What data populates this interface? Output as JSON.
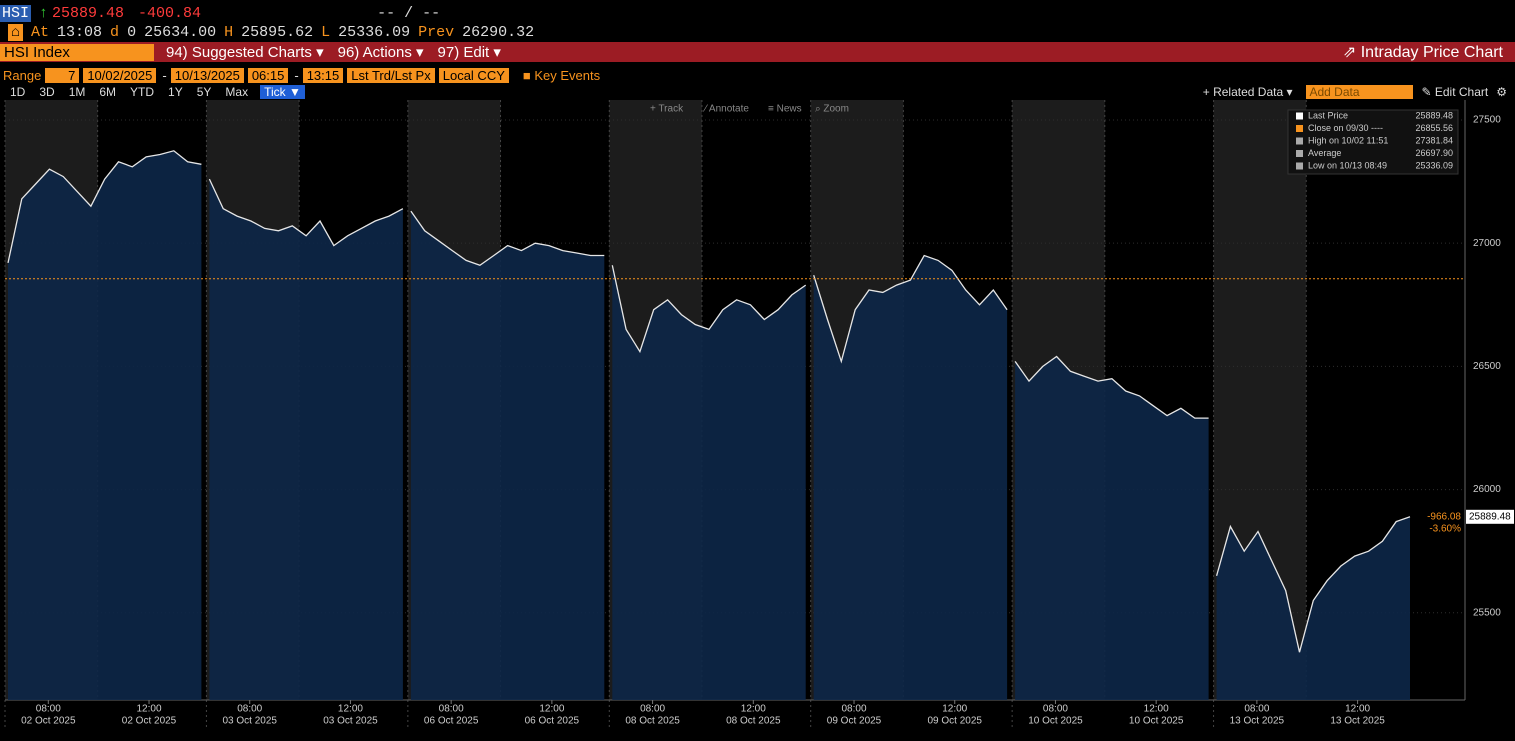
{
  "header": {
    "ticker": "HSI",
    "last": "25889.48",
    "change": "-400.84",
    "bid_ask": "-- / --",
    "at": "At",
    "time": "13:08",
    "d": "d",
    "d_value": "0",
    "open": "25634.00",
    "h": "H",
    "high": "25895.62",
    "l": "L",
    "low": "25336.09",
    "prev": "Prev",
    "prev_value": "26290.32"
  },
  "menu": {
    "security": "HSI Index",
    "items": [
      "94) Suggested Charts ▾",
      "96) Actions ▾",
      "97) Edit ▾"
    ],
    "title": "Intraday Price Chart"
  },
  "range_bar": {
    "label": "Range",
    "days": "7",
    "start": "10/02/2025",
    "dash": "-",
    "end": "10/13/2025",
    "time_start": "06:15",
    "time_end": "13:15",
    "field": "Lst Trd/Lst Px",
    "currency": "Local CCY",
    "events": "Key Events"
  },
  "periods": [
    "1D",
    "3D",
    "1M",
    "6M",
    "YTD",
    "1Y",
    "5Y",
    "Max",
    "Tick ▼"
  ],
  "right_tools": {
    "related": "+ Related Data ▾",
    "add": "Add Data",
    "edit": "✎ Edit Chart"
  },
  "tools": [
    "+ Track",
    "⁄ Annotate",
    "≡ News",
    "⌕ Zoom"
  ],
  "chart_data": {
    "type": "line",
    "color": "#e6e6e6",
    "fill": "#0d2748",
    "ylim": [
      25146,
      27581
    ],
    "yticks": [
      25500,
      26000,
      26500,
      27000,
      27500
    ],
    "close_line": {
      "value": 26855.56,
      "color": "#f7931e"
    },
    "last_label": "25889.48",
    "change_labels": [
      "-966.08",
      "-3.60%"
    ],
    "legend": [
      {
        "name": "Last Price",
        "value": "25889.48",
        "color": "#ffffff"
      },
      {
        "name": "Close on 09/30 ----",
        "value": "26855.56",
        "color": "#f7931e"
      },
      {
        "name": "High on 10/02 11:51",
        "value": "27381.84",
        "color": "#aaaaaa"
      },
      {
        "name": "Average",
        "value": "26697.90",
        "color": "#aaaaaa"
      },
      {
        "name": "Low on 10/13 08:49",
        "value": "25336.09",
        "color": "#aaaaaa"
      }
    ],
    "days": [
      {
        "date": "02 Oct 2025",
        "times": [
          "08:00",
          "12:00"
        ],
        "values": [
          26920,
          27180,
          27240,
          27300,
          27270,
          27210,
          27150,
          27260,
          27330,
          27310,
          27350,
          27360,
          27375,
          27330,
          27320
        ]
      },
      {
        "date": "03 Oct 2025",
        "times": [
          "08:00",
          "12:00"
        ],
        "values": [
          27260,
          27140,
          27110,
          27090,
          27060,
          27050,
          27070,
          27030,
          27090,
          26990,
          27030,
          27060,
          27090,
          27110,
          27140
        ]
      },
      {
        "date": "06 Oct 2025",
        "times": [
          "08:00",
          "12:00"
        ],
        "values": [
          27130,
          27050,
          27010,
          26970,
          26930,
          26910,
          26950,
          26990,
          26970,
          27000,
          26990,
          26970,
          26960,
          26950,
          26950
        ]
      },
      {
        "date": "08 Oct 2025",
        "times": [
          "08:00",
          "12:00"
        ],
        "values": [
          26910,
          26650,
          26560,
          26730,
          26770,
          26710,
          26670,
          26650,
          26730,
          26770,
          26750,
          26690,
          26730,
          26790,
          26830
        ]
      },
      {
        "date": "09 Oct 2025",
        "times": [
          "08:00",
          "12:00"
        ],
        "values": [
          26870,
          26690,
          26520,
          26730,
          26810,
          26800,
          26830,
          26850,
          26950,
          26930,
          26890,
          26810,
          26750,
          26810,
          26730
        ]
      },
      {
        "date": "10 Oct 2025",
        "times": [
          "08:00",
          "12:00"
        ],
        "values": [
          26520,
          26440,
          26500,
          26540,
          26480,
          26460,
          26440,
          26450,
          26400,
          26380,
          26340,
          26300,
          26330,
          26290,
          26290
        ]
      },
      {
        "date": "13 Oct 2025",
        "times": [
          "08:00",
          "12:00"
        ],
        "values": [
          25650,
          25850,
          25750,
          25830,
          25710,
          25590,
          25340,
          25550,
          25630,
          25690,
          25730,
          25750,
          25790,
          25870,
          25889.48
        ]
      }
    ]
  }
}
